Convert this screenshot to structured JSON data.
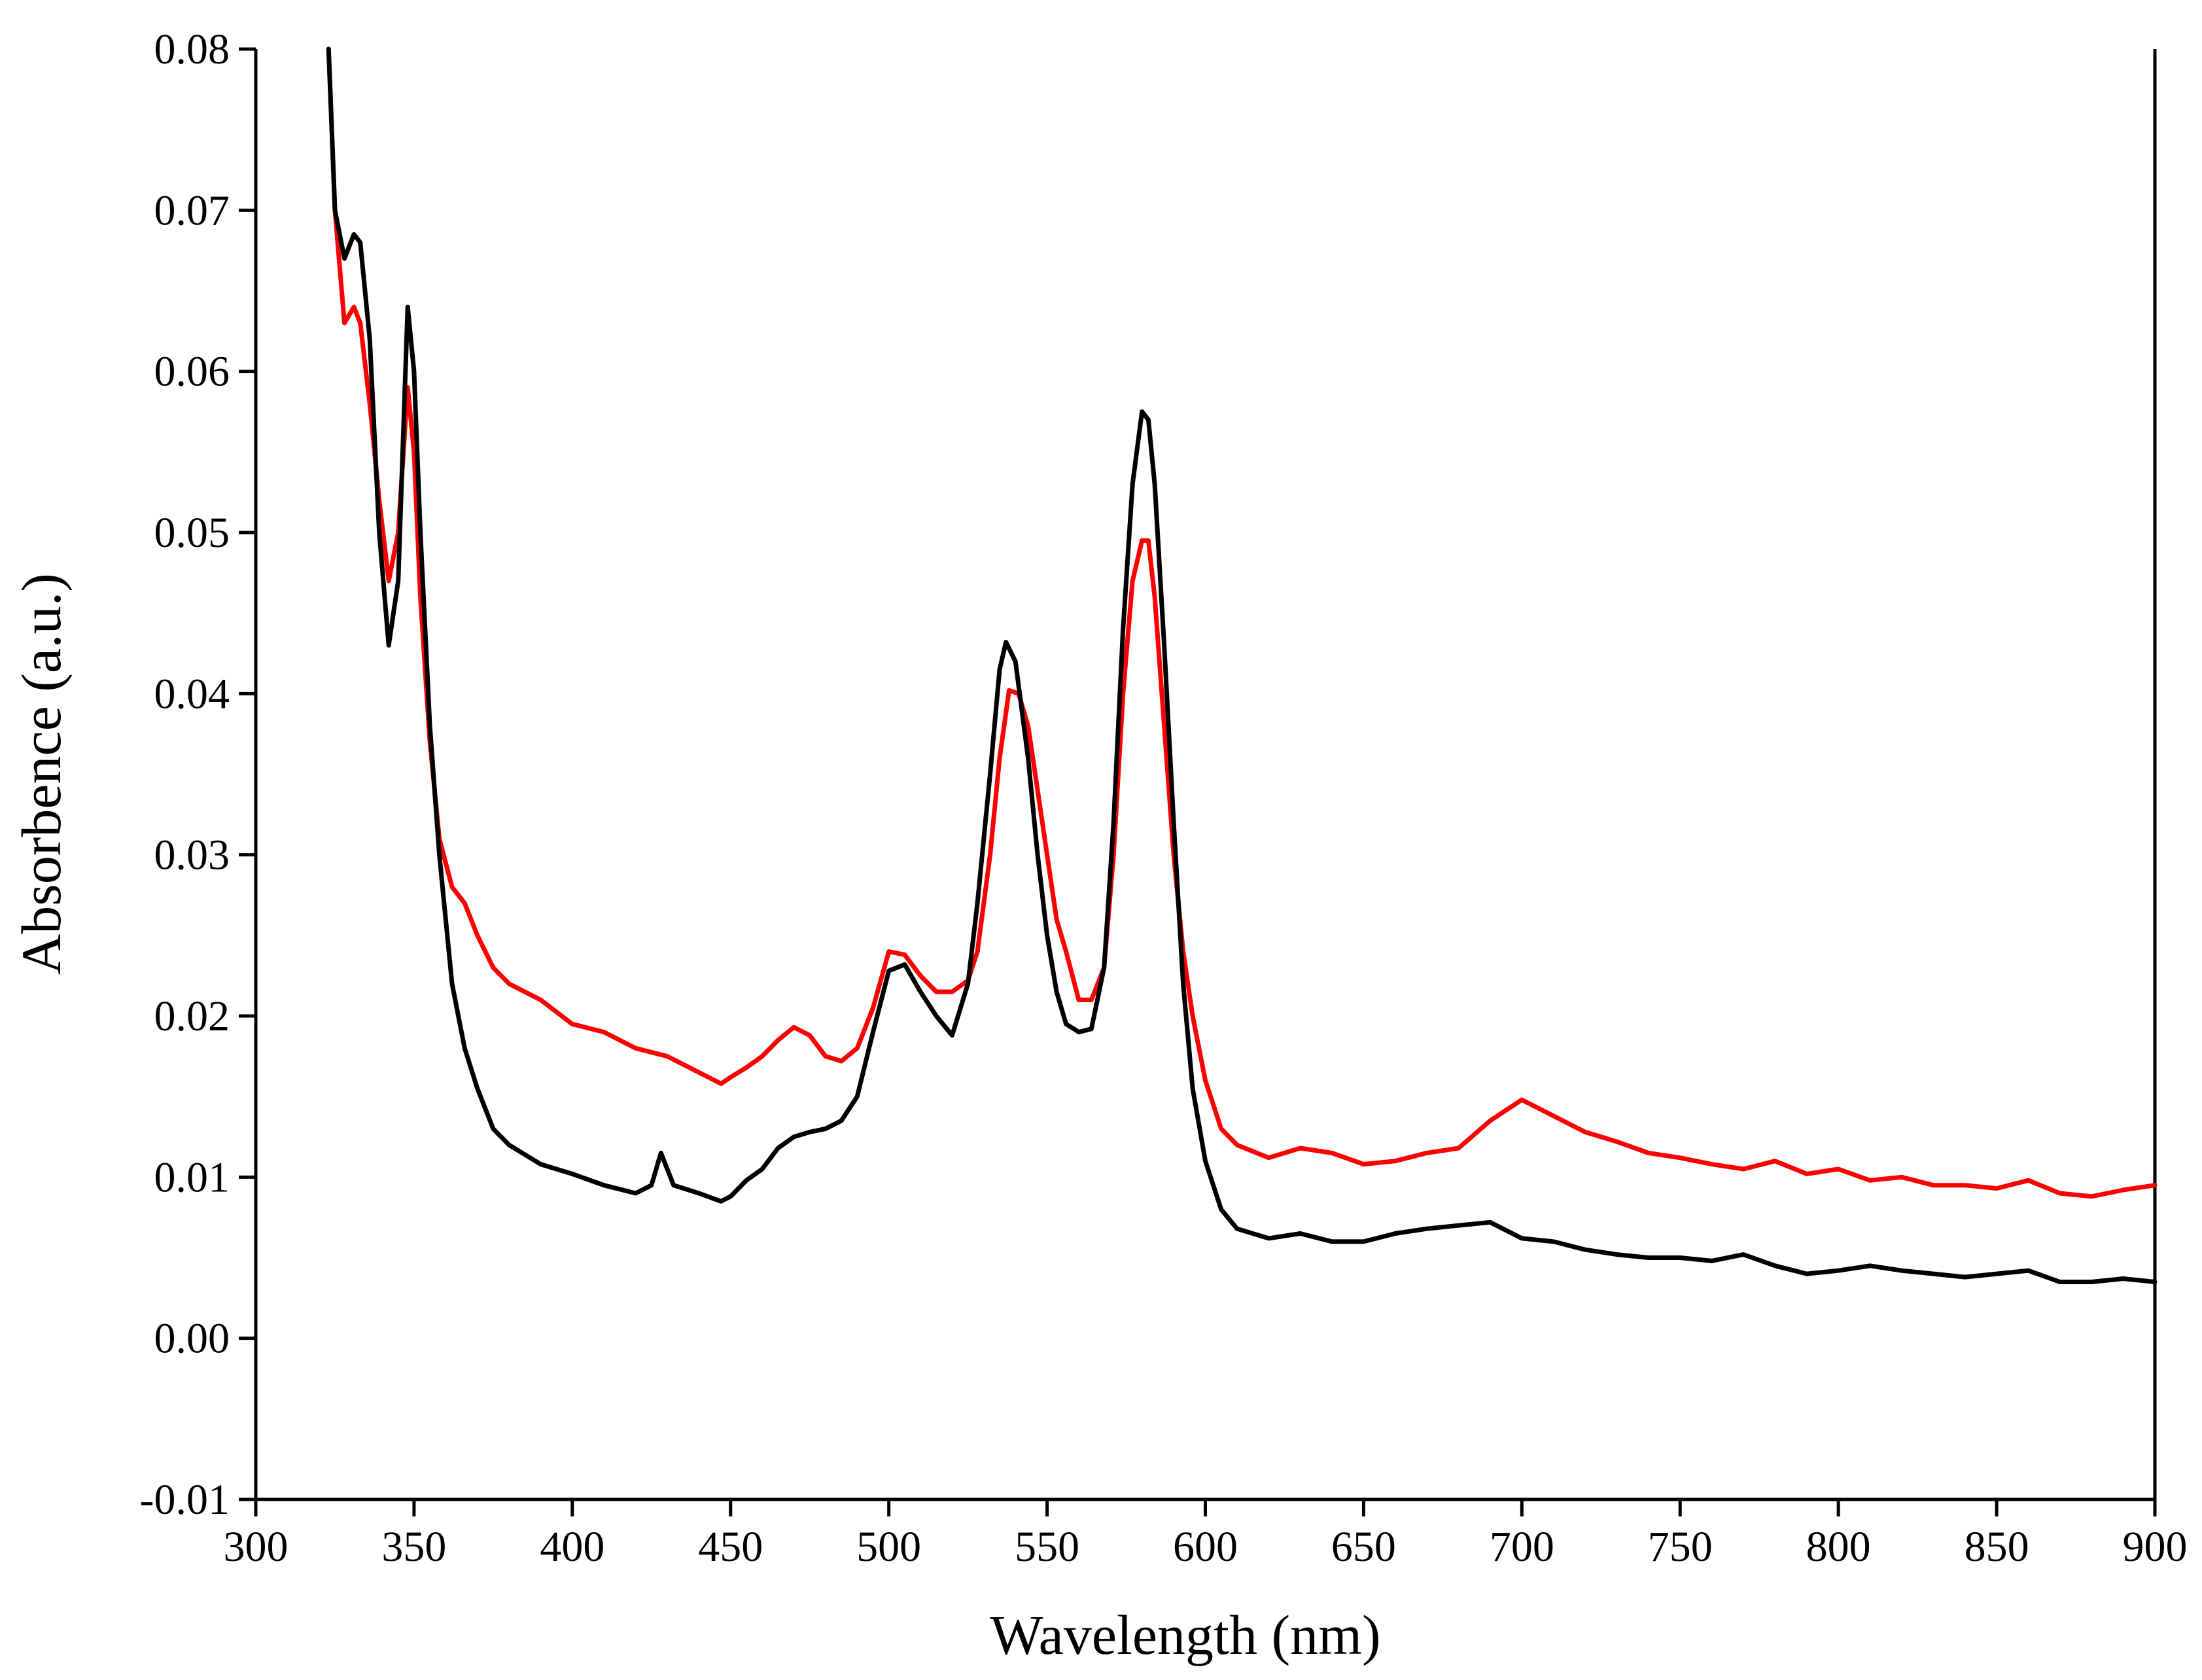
{
  "chart_data": {
    "type": "line",
    "title": "",
    "xlabel": "Wavelength (nm)",
    "ylabel": "Absorbence (a.u.)",
    "xlim": [
      300,
      900
    ],
    "ylim": [
      -0.01,
      0.08
    ],
    "x_ticks": [
      300,
      350,
      400,
      450,
      500,
      550,
      600,
      650,
      700,
      750,
      800,
      850,
      900
    ],
    "y_ticks": [
      "-0.01",
      "0.00",
      "0.01",
      "0.02",
      "0.03",
      "0.04",
      "0.05",
      "0.06",
      "0.07",
      "0.08"
    ],
    "grid": false,
    "legend": "none",
    "series": [
      {
        "color": "#ff0000",
        "x": [
          323,
          325,
          328,
          331,
          333,
          336,
          339,
          342,
          345,
          348,
          350,
          352,
          355,
          358,
          362,
          366,
          370,
          375,
          380,
          390,
          400,
          410,
          420,
          430,
          440,
          447,
          450,
          455,
          460,
          465,
          470,
          475,
          480,
          485,
          490,
          495,
          500,
          505,
          510,
          515,
          520,
          525,
          528,
          532,
          535,
          538,
          541,
          544,
          547,
          550,
          553,
          556,
          560,
          564,
          568,
          571,
          574,
          577,
          580,
          582,
          584,
          587,
          590,
          593,
          596,
          600,
          605,
          610,
          620,
          630,
          640,
          650,
          660,
          670,
          680,
          690,
          700,
          710,
          720,
          730,
          740,
          750,
          760,
          770,
          780,
          790,
          800,
          810,
          820,
          830,
          840,
          850,
          860,
          870,
          880,
          890,
          900
        ],
        "y": [
          0.08,
          0.07,
          0.063,
          0.064,
          0.063,
          0.058,
          0.052,
          0.047,
          0.05,
          0.059,
          0.055,
          0.046,
          0.037,
          0.031,
          0.028,
          0.027,
          0.025,
          0.023,
          0.022,
          0.021,
          0.0195,
          0.019,
          0.018,
          0.0175,
          0.0165,
          0.0158,
          0.0162,
          0.0168,
          0.0175,
          0.0185,
          0.0193,
          0.0188,
          0.0175,
          0.0172,
          0.018,
          0.0205,
          0.024,
          0.0238,
          0.0225,
          0.0215,
          0.0215,
          0.0222,
          0.024,
          0.03,
          0.036,
          0.0402,
          0.04,
          0.038,
          0.034,
          0.03,
          0.026,
          0.024,
          0.021,
          0.021,
          0.023,
          0.03,
          0.04,
          0.047,
          0.0495,
          0.0495,
          0.046,
          0.038,
          0.03,
          0.024,
          0.02,
          0.016,
          0.013,
          0.012,
          0.0112,
          0.0118,
          0.0115,
          0.0108,
          0.011,
          0.0115,
          0.0118,
          0.0135,
          0.0148,
          0.0138,
          0.0128,
          0.0122,
          0.0115,
          0.0112,
          0.0108,
          0.0105,
          0.011,
          0.0102,
          0.0105,
          0.0098,
          0.01,
          0.0095,
          0.0095,
          0.0093,
          0.0098,
          0.009,
          0.0088,
          0.0092,
          0.0095
        ]
      },
      {
        "color": "#000000",
        "x": [
          323,
          325,
          328,
          331,
          333,
          336,
          339,
          342,
          345,
          348,
          350,
          352,
          355,
          358,
          362,
          366,
          370,
          375,
          380,
          390,
          400,
          410,
          420,
          425,
          428,
          432,
          440,
          447,
          450,
          455,
          460,
          465,
          470,
          475,
          480,
          485,
          490,
          495,
          500,
          505,
          510,
          515,
          520,
          525,
          528,
          532,
          535,
          537,
          540,
          544,
          547,
          550,
          553,
          556,
          560,
          564,
          568,
          571,
          574,
          577,
          580,
          582,
          584,
          587,
          590,
          593,
          596,
          600,
          605,
          610,
          620,
          630,
          640,
          650,
          660,
          670,
          680,
          690,
          700,
          710,
          720,
          730,
          740,
          750,
          760,
          770,
          780,
          790,
          800,
          810,
          820,
          830,
          840,
          850,
          860,
          870,
          880,
          890,
          900
        ],
        "y": [
          0.08,
          0.07,
          0.067,
          0.0685,
          0.068,
          0.062,
          0.05,
          0.043,
          0.047,
          0.064,
          0.06,
          0.05,
          0.038,
          0.03,
          0.022,
          0.018,
          0.0155,
          0.013,
          0.012,
          0.0108,
          0.0102,
          0.0095,
          0.009,
          0.0095,
          0.0115,
          0.0095,
          0.009,
          0.0085,
          0.0088,
          0.0098,
          0.0105,
          0.0118,
          0.0125,
          0.0128,
          0.013,
          0.0135,
          0.015,
          0.019,
          0.0228,
          0.0232,
          0.0215,
          0.02,
          0.0188,
          0.022,
          0.027,
          0.035,
          0.0415,
          0.0432,
          0.042,
          0.036,
          0.03,
          0.025,
          0.0215,
          0.0195,
          0.019,
          0.0192,
          0.023,
          0.032,
          0.044,
          0.053,
          0.0575,
          0.057,
          0.053,
          0.043,
          0.032,
          0.022,
          0.0155,
          0.011,
          0.008,
          0.0068,
          0.0062,
          0.0065,
          0.006,
          0.006,
          0.0065,
          0.0068,
          0.007,
          0.0072,
          0.0062,
          0.006,
          0.0055,
          0.0052,
          0.005,
          0.005,
          0.0048,
          0.0052,
          0.0045,
          0.004,
          0.0042,
          0.0045,
          0.0042,
          0.004,
          0.0038,
          0.004,
          0.0042,
          0.0035,
          0.0035,
          0.0037,
          0.0035
        ]
      }
    ]
  }
}
